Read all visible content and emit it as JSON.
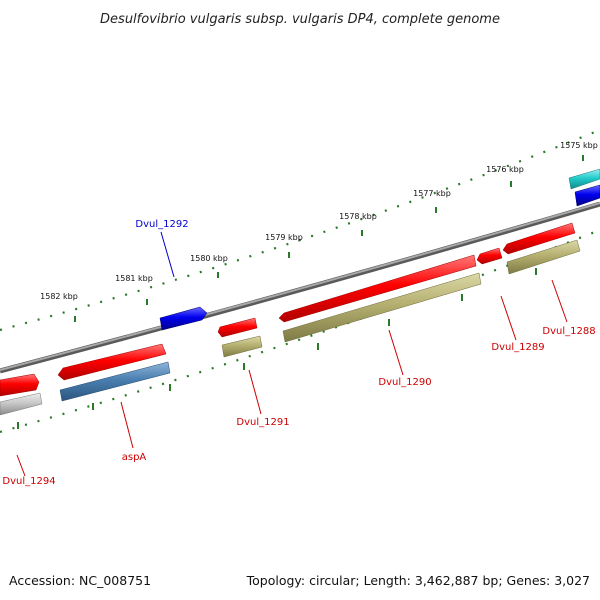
{
  "title": "Desulfovibrio vulgaris subsp. vulgaris DP4, complete genome",
  "footer": {
    "accession": "Accession: NC_008751",
    "summary": "Topology: circular; Length: 3,462,887 bp; Genes: 3,027"
  },
  "colors": {
    "backbone": "#808080",
    "tick": "#2a7a2a",
    "cds_red": "#ee0000",
    "cds_blue": "#0000dd",
    "cds_cyan": "#22cccc",
    "feature_olive": "#b5b070",
    "feature_steel": "#4a7fb0",
    "feature_grey": "#c8c8c8",
    "label_red": "#cc0000",
    "label_blue": "#0000cc"
  },
  "ticks": [
    "1582 kbp",
    "1581 kbp",
    "1580 kbp",
    "1579 kbp",
    "1578 kbp",
    "1577 kbp",
    "1576 kbp",
    "1575 kbp"
  ],
  "genes": [
    {
      "name": "Dvul_1294",
      "color": "label_red"
    },
    {
      "name": "aspA",
      "color": "label_red"
    },
    {
      "name": "Dvul_1292",
      "color": "label_blue"
    },
    {
      "name": "Dvul_1291",
      "color": "label_red"
    },
    {
      "name": "Dvul_1290",
      "color": "label_red"
    },
    {
      "name": "Dvul_1289",
      "color": "label_red"
    },
    {
      "name": "Dvul_1288",
      "color": "label_red"
    }
  ]
}
